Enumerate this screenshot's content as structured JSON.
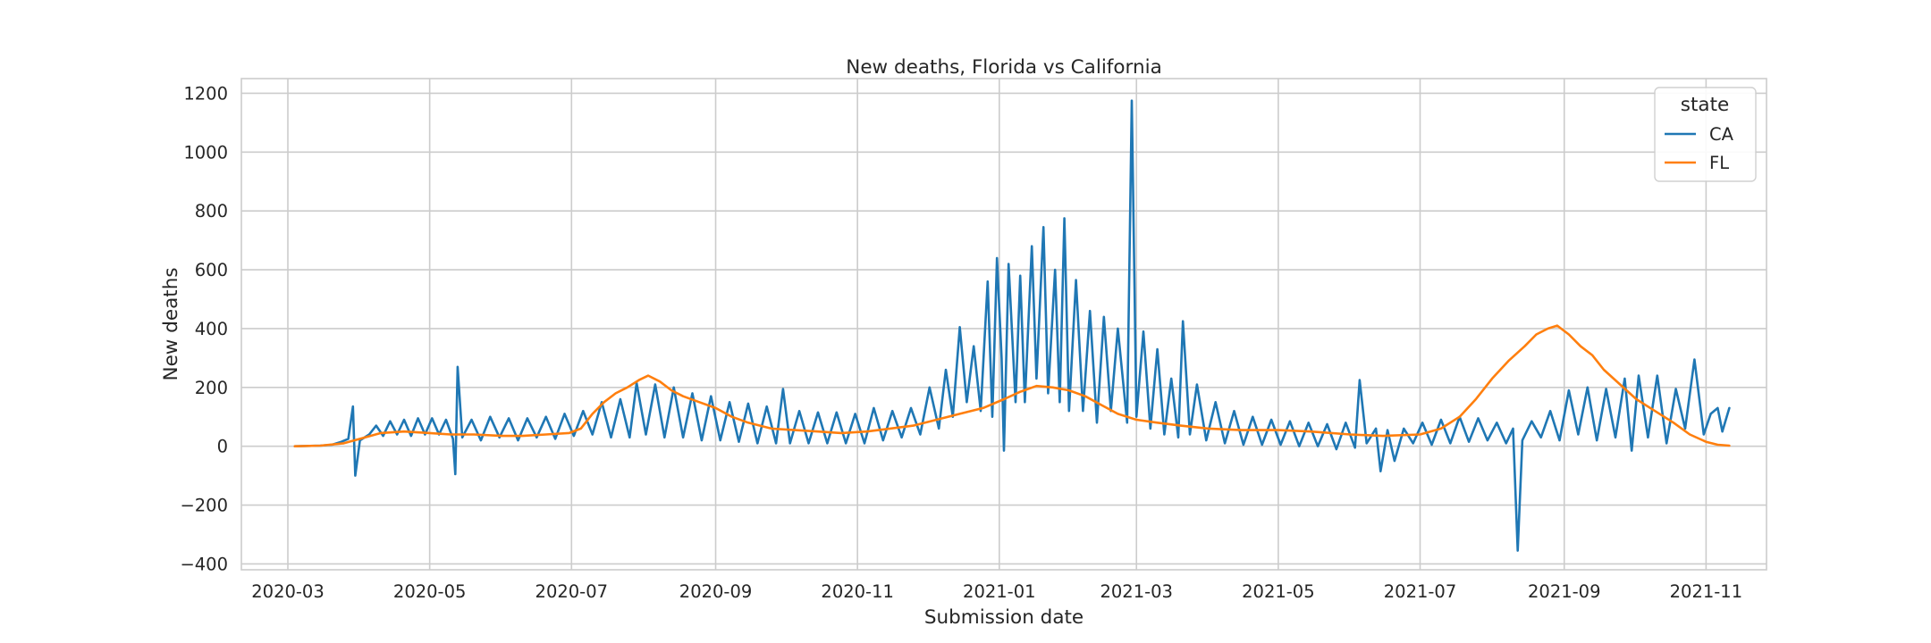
{
  "chart_data": {
    "type": "line",
    "title": "New deaths, Florida vs California",
    "xlabel": "Submission date",
    "ylabel": "New deaths",
    "xlim": [
      "2020-02-10",
      "2021-11-27"
    ],
    "ylim": [
      -420,
      1250
    ],
    "x_ticks": [
      "2020-03-01",
      "2020-05-01",
      "2020-07-01",
      "2020-09-01",
      "2020-11-01",
      "2021-01-01",
      "2021-03-01",
      "2021-05-01",
      "2021-07-01",
      "2021-09-01",
      "2021-11-01"
    ],
    "x_tick_labels": [
      "2020-03",
      "2020-05",
      "2020-07",
      "2020-09",
      "2020-11",
      "2021-01",
      "2021-03",
      "2021-05",
      "2021-07",
      "2021-09",
      "2021-11"
    ],
    "y_ticks": [
      -400,
      -200,
      0,
      200,
      400,
      600,
      800,
      1000,
      1200
    ],
    "y_tick_labels": [
      "−400",
      "−200",
      "0",
      "200",
      "400",
      "600",
      "800",
      "1000",
      "1200"
    ],
    "grid": true,
    "legend": {
      "title": "state",
      "position": "top-right"
    },
    "series": [
      {
        "name": "CA",
        "color": "#1f77b4",
        "points": [
          [
            "2020-03-04",
            0
          ],
          [
            "2020-03-15",
            2
          ],
          [
            "2020-03-20",
            5
          ],
          [
            "2020-03-24",
            15
          ],
          [
            "2020-03-27",
            25
          ],
          [
            "2020-03-29",
            135
          ],
          [
            "2020-03-30",
            -100
          ],
          [
            "2020-04-01",
            20
          ],
          [
            "2020-04-05",
            40
          ],
          [
            "2020-04-08",
            70
          ],
          [
            "2020-04-11",
            35
          ],
          [
            "2020-04-14",
            85
          ],
          [
            "2020-04-17",
            40
          ],
          [
            "2020-04-20",
            90
          ],
          [
            "2020-04-23",
            35
          ],
          [
            "2020-04-26",
            95
          ],
          [
            "2020-04-29",
            40
          ],
          [
            "2020-05-02",
            95
          ],
          [
            "2020-05-05",
            40
          ],
          [
            "2020-05-08",
            90
          ],
          [
            "2020-05-11",
            25
          ],
          [
            "2020-05-12",
            -95
          ],
          [
            "2020-05-13",
            270
          ],
          [
            "2020-05-15",
            30
          ],
          [
            "2020-05-19",
            90
          ],
          [
            "2020-05-23",
            20
          ],
          [
            "2020-05-27",
            100
          ],
          [
            "2020-05-31",
            30
          ],
          [
            "2020-06-04",
            95
          ],
          [
            "2020-06-08",
            20
          ],
          [
            "2020-06-12",
            95
          ],
          [
            "2020-06-16",
            30
          ],
          [
            "2020-06-20",
            100
          ],
          [
            "2020-06-24",
            25
          ],
          [
            "2020-06-28",
            110
          ],
          [
            "2020-07-02",
            35
          ],
          [
            "2020-07-06",
            120
          ],
          [
            "2020-07-10",
            40
          ],
          [
            "2020-07-14",
            150
          ],
          [
            "2020-07-18",
            30
          ],
          [
            "2020-07-22",
            160
          ],
          [
            "2020-07-26",
            30
          ],
          [
            "2020-07-29",
            215
          ],
          [
            "2020-08-02",
            40
          ],
          [
            "2020-08-06",
            210
          ],
          [
            "2020-08-10",
            30
          ],
          [
            "2020-08-14",
            200
          ],
          [
            "2020-08-18",
            30
          ],
          [
            "2020-08-22",
            180
          ],
          [
            "2020-08-26",
            20
          ],
          [
            "2020-08-30",
            170
          ],
          [
            "2020-09-03",
            20
          ],
          [
            "2020-09-07",
            150
          ],
          [
            "2020-09-11",
            15
          ],
          [
            "2020-09-15",
            145
          ],
          [
            "2020-09-19",
            10
          ],
          [
            "2020-09-23",
            135
          ],
          [
            "2020-09-27",
            10
          ],
          [
            "2020-09-30",
            195
          ],
          [
            "2020-10-03",
            10
          ],
          [
            "2020-10-07",
            120
          ],
          [
            "2020-10-11",
            10
          ],
          [
            "2020-10-15",
            115
          ],
          [
            "2020-10-19",
            10
          ],
          [
            "2020-10-23",
            115
          ],
          [
            "2020-10-27",
            10
          ],
          [
            "2020-10-31",
            110
          ],
          [
            "2020-11-04",
            10
          ],
          [
            "2020-11-08",
            130
          ],
          [
            "2020-11-12",
            20
          ],
          [
            "2020-11-16",
            120
          ],
          [
            "2020-11-20",
            30
          ],
          [
            "2020-11-24",
            130
          ],
          [
            "2020-11-28",
            40
          ],
          [
            "2020-12-02",
            200
          ],
          [
            "2020-12-06",
            60
          ],
          [
            "2020-12-09",
            260
          ],
          [
            "2020-12-12",
            100
          ],
          [
            "2020-12-15",
            405
          ],
          [
            "2020-12-18",
            150
          ],
          [
            "2020-12-21",
            340
          ],
          [
            "2020-12-24",
            120
          ],
          [
            "2020-12-27",
            560
          ],
          [
            "2020-12-29",
            100
          ],
          [
            "2020-12-31",
            640
          ],
          [
            "2021-01-02",
            300
          ],
          [
            "2021-01-03",
            -15
          ],
          [
            "2021-01-05",
            620
          ],
          [
            "2021-01-08",
            150
          ],
          [
            "2021-01-10",
            580
          ],
          [
            "2021-01-12",
            150
          ],
          [
            "2021-01-15",
            680
          ],
          [
            "2021-01-17",
            230
          ],
          [
            "2021-01-20",
            745
          ],
          [
            "2021-01-22",
            180
          ],
          [
            "2021-01-25",
            600
          ],
          [
            "2021-01-27",
            150
          ],
          [
            "2021-01-29",
            775
          ],
          [
            "2021-01-31",
            120
          ],
          [
            "2021-02-03",
            565
          ],
          [
            "2021-02-06",
            120
          ],
          [
            "2021-02-09",
            460
          ],
          [
            "2021-02-12",
            80
          ],
          [
            "2021-02-15",
            440
          ],
          [
            "2021-02-18",
            120
          ],
          [
            "2021-02-21",
            400
          ],
          [
            "2021-02-25",
            80
          ],
          [
            "2021-02-27",
            1175
          ],
          [
            "2021-03-01",
            100
          ],
          [
            "2021-03-04",
            390
          ],
          [
            "2021-03-07",
            60
          ],
          [
            "2021-03-10",
            330
          ],
          [
            "2021-03-13",
            40
          ],
          [
            "2021-03-16",
            230
          ],
          [
            "2021-03-19",
            30
          ],
          [
            "2021-03-21",
            425
          ],
          [
            "2021-03-24",
            40
          ],
          [
            "2021-03-27",
            210
          ],
          [
            "2021-03-31",
            20
          ],
          [
            "2021-04-04",
            150
          ],
          [
            "2021-04-08",
            10
          ],
          [
            "2021-04-12",
            120
          ],
          [
            "2021-04-16",
            5
          ],
          [
            "2021-04-20",
            100
          ],
          [
            "2021-04-24",
            5
          ],
          [
            "2021-04-28",
            90
          ],
          [
            "2021-05-02",
            5
          ],
          [
            "2021-05-06",
            85
          ],
          [
            "2021-05-10",
            0
          ],
          [
            "2021-05-14",
            80
          ],
          [
            "2021-05-18",
            0
          ],
          [
            "2021-05-22",
            75
          ],
          [
            "2021-05-26",
            -10
          ],
          [
            "2021-05-30",
            80
          ],
          [
            "2021-06-03",
            -5
          ],
          [
            "2021-06-05",
            225
          ],
          [
            "2021-06-08",
            10
          ],
          [
            "2021-06-12",
            60
          ],
          [
            "2021-06-14",
            -85
          ],
          [
            "2021-06-17",
            55
          ],
          [
            "2021-06-20",
            -50
          ],
          [
            "2021-06-24",
            60
          ],
          [
            "2021-06-28",
            10
          ],
          [
            "2021-07-02",
            80
          ],
          [
            "2021-07-06",
            5
          ],
          [
            "2021-07-10",
            90
          ],
          [
            "2021-07-14",
            10
          ],
          [
            "2021-07-18",
            100
          ],
          [
            "2021-07-22",
            15
          ],
          [
            "2021-07-26",
            95
          ],
          [
            "2021-07-30",
            20
          ],
          [
            "2021-08-03",
            80
          ],
          [
            "2021-08-07",
            10
          ],
          [
            "2021-08-10",
            60
          ],
          [
            "2021-08-12",
            -355
          ],
          [
            "2021-08-14",
            20
          ],
          [
            "2021-08-18",
            85
          ],
          [
            "2021-08-22",
            30
          ],
          [
            "2021-08-26",
            120
          ],
          [
            "2021-08-30",
            20
          ],
          [
            "2021-09-03",
            190
          ],
          [
            "2021-09-07",
            40
          ],
          [
            "2021-09-11",
            200
          ],
          [
            "2021-09-15",
            20
          ],
          [
            "2021-09-19",
            195
          ],
          [
            "2021-09-23",
            30
          ],
          [
            "2021-09-27",
            230
          ],
          [
            "2021-09-30",
            -15
          ],
          [
            "2021-10-03",
            240
          ],
          [
            "2021-10-07",
            30
          ],
          [
            "2021-10-11",
            240
          ],
          [
            "2021-10-15",
            10
          ],
          [
            "2021-10-19",
            195
          ],
          [
            "2021-10-23",
            60
          ],
          [
            "2021-10-27",
            295
          ],
          [
            "2021-10-31",
            40
          ],
          [
            "2021-11-03",
            110
          ],
          [
            "2021-11-06",
            130
          ],
          [
            "2021-11-08",
            50
          ],
          [
            "2021-11-11",
            130
          ]
        ]
      },
      {
        "name": "FL",
        "color": "#ff7f0e",
        "points": [
          [
            "2020-03-04",
            0
          ],
          [
            "2020-03-15",
            2
          ],
          [
            "2020-03-25",
            10
          ],
          [
            "2020-04-01",
            25
          ],
          [
            "2020-04-10",
            45
          ],
          [
            "2020-04-20",
            50
          ],
          [
            "2020-05-01",
            45
          ],
          [
            "2020-05-10",
            40
          ],
          [
            "2020-05-20",
            40
          ],
          [
            "2020-06-01",
            35
          ],
          [
            "2020-06-10",
            35
          ],
          [
            "2020-06-20",
            40
          ],
          [
            "2020-06-30",
            45
          ],
          [
            "2020-07-05",
            60
          ],
          [
            "2020-07-10",
            110
          ],
          [
            "2020-07-15",
            150
          ],
          [
            "2020-07-20",
            180
          ],
          [
            "2020-07-25",
            200
          ],
          [
            "2020-07-30",
            225
          ],
          [
            "2020-08-03",
            240
          ],
          [
            "2020-08-08",
            220
          ],
          [
            "2020-08-13",
            190
          ],
          [
            "2020-08-18",
            170
          ],
          [
            "2020-08-25",
            150
          ],
          [
            "2020-09-01",
            130
          ],
          [
            "2020-09-08",
            100
          ],
          [
            "2020-09-15",
            80
          ],
          [
            "2020-09-25",
            60
          ],
          [
            "2020-10-05",
            55
          ],
          [
            "2020-10-15",
            50
          ],
          [
            "2020-10-25",
            45
          ],
          [
            "2020-11-05",
            50
          ],
          [
            "2020-11-15",
            60
          ],
          [
            "2020-11-25",
            70
          ],
          [
            "2020-12-05",
            90
          ],
          [
            "2020-12-15",
            110
          ],
          [
            "2020-12-25",
            130
          ],
          [
            "2021-01-03",
            160
          ],
          [
            "2021-01-10",
            185
          ],
          [
            "2021-01-17",
            205
          ],
          [
            "2021-01-24",
            200
          ],
          [
            "2021-01-31",
            190
          ],
          [
            "2021-02-07",
            170
          ],
          [
            "2021-02-14",
            140
          ],
          [
            "2021-02-21",
            110
          ],
          [
            "2021-03-01",
            90
          ],
          [
            "2021-03-10",
            80
          ],
          [
            "2021-03-20",
            70
          ],
          [
            "2021-04-01",
            60
          ],
          [
            "2021-04-15",
            55
          ],
          [
            "2021-05-01",
            55
          ],
          [
            "2021-05-15",
            50
          ],
          [
            "2021-06-01",
            40
          ],
          [
            "2021-06-15",
            35
          ],
          [
            "2021-07-01",
            40
          ],
          [
            "2021-07-10",
            60
          ],
          [
            "2021-07-18",
            100
          ],
          [
            "2021-07-25",
            160
          ],
          [
            "2021-08-01",
            230
          ],
          [
            "2021-08-08",
            290
          ],
          [
            "2021-08-15",
            340
          ],
          [
            "2021-08-20",
            380
          ],
          [
            "2021-08-25",
            400
          ],
          [
            "2021-08-29",
            410
          ],
          [
            "2021-09-03",
            380
          ],
          [
            "2021-09-08",
            340
          ],
          [
            "2021-09-13",
            310
          ],
          [
            "2021-09-18",
            260
          ],
          [
            "2021-09-25",
            210
          ],
          [
            "2021-10-02",
            160
          ],
          [
            "2021-10-10",
            120
          ],
          [
            "2021-10-18",
            80
          ],
          [
            "2021-10-25",
            40
          ],
          [
            "2021-11-01",
            15
          ],
          [
            "2021-11-06",
            5
          ],
          [
            "2021-11-11",
            2
          ]
        ]
      }
    ]
  }
}
